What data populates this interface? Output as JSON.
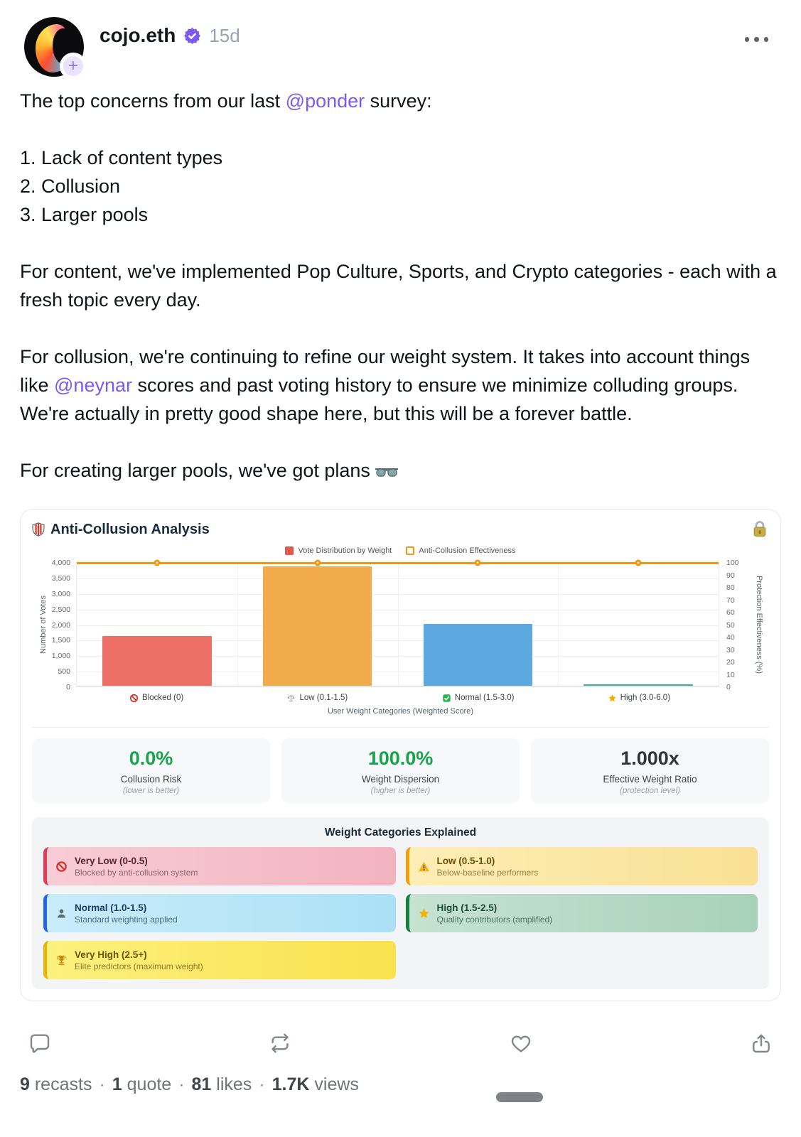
{
  "header": {
    "username": "cojo.eth",
    "timestamp": "15d",
    "verified_color": "#7a5af5",
    "avatar_plus": "+"
  },
  "post": {
    "p1_before": "The top concerns from our last ",
    "p1_link": "@ponder",
    "p1_after": " survey:",
    "list": [
      "1. Lack of content types",
      "2. Collusion",
      "3. Larger pools"
    ],
    "p2": "For content, we've implemented Pop Culture, Sports, and Crypto categories - each with a fresh topic every day.",
    "p3_before": "For collusion, we're continuing to refine our weight system. It takes into account things like ",
    "p3_link": "@neynar",
    "p3_after": " scores and past voting history to ensure we minimize colluding groups. We're actually in pretty good shape here, but this will be a forever battle.",
    "p4_text": "For creating larger pools, we've got plans",
    "p4_emoji": "🕶️",
    "link_color": "#7a5af5"
  },
  "card": {
    "title": "Anti-Collusion Analysis",
    "header_icons": [
      "shield-icon",
      "lock-icon"
    ],
    "chart_data": {
      "type": "bar+line",
      "categories": [
        {
          "icon": "blocked-icon",
          "label": "Blocked (0)"
        },
        {
          "icon": "scale-icon",
          "label": "Low (0.1-1.5)"
        },
        {
          "icon": "check-icon",
          "label": "Normal (1.5-3.0)"
        },
        {
          "icon": "star-icon",
          "label": "High (3.0-6.0)"
        }
      ],
      "series": [
        {
          "name": "Vote Distribution by Weight",
          "type": "bar",
          "values": [
            1600,
            3850,
            2000,
            25
          ],
          "colors": [
            "#ee6f66",
            "#f2ab4a",
            "#5ba9de",
            "#35b79b"
          ],
          "legend": {
            "style": "filled",
            "color": "#e4574d"
          }
        },
        {
          "name": "Anti-Collusion Effectiveness",
          "type": "line",
          "values": [
            100,
            100,
            100,
            100
          ],
          "color": "#f59412",
          "legend": {
            "style": "outline",
            "color": "#f59412"
          }
        }
      ],
      "ylabel_left": "Number of Votes",
      "ylabel_right": "Protection Effectiveness (%)",
      "xlabel": "User Weight Categories (Weighted Score)",
      "left_ticks": [
        "4,000",
        "3,500",
        "3,000",
        "2,500",
        "2,000",
        "1,500",
        "1,000",
        "500",
        "0"
      ],
      "right_ticks": [
        "100",
        "90",
        "80",
        "70",
        "60",
        "50",
        "40",
        "30",
        "20",
        "10",
        "0"
      ],
      "ylim_left": [
        0,
        4000
      ],
      "ylim_right": [
        0,
        100
      ],
      "grid": true,
      "legend_position": "top"
    },
    "stats": [
      {
        "value": "0.0%",
        "label": "Collusion Risk",
        "note": "(lower is better)",
        "color": "#16a34a"
      },
      {
        "value": "100.0%",
        "label": "Weight Dispersion",
        "note": "(higher is better)",
        "color": "#16a34a"
      },
      {
        "value": "1.000x",
        "label": "Effective Weight Ratio",
        "note": "(protection level)",
        "color": "#2f3438"
      }
    ],
    "weight_section": {
      "title": "Weight Categories Explained",
      "items": [
        {
          "icon": "blocked-icon",
          "title": "Very Low (0-0.5)",
          "desc": "Blocked by anti-collusion system",
          "bg": "linear-gradient(90deg,#f8ccd6,#f2b3bf)",
          "border": "#e23b52",
          "titleColor": "#58242e",
          "descColor": "#96606a"
        },
        {
          "icon": "warning-icon",
          "title": "Low (0.5-1.0)",
          "desc": "Below-baseline performers",
          "bg": "linear-gradient(90deg,#fdeeb6,#f9e094)",
          "border": "#f59e0b",
          "titleColor": "#6b4e0a",
          "descColor": "#9a7f42"
        },
        {
          "icon": "person-icon",
          "title": "Normal (1.0-1.5)",
          "desc": "Standard weighting applied",
          "bg": "linear-gradient(90deg,#c9ecfa,#abe0f5)",
          "border": "#2563eb",
          "titleColor": "#1d3f66",
          "descColor": "#4f6d86"
        },
        {
          "icon": "star-icon",
          "title": "High (1.5-2.5)",
          "desc": "Quality contributors (amplified)",
          "bg": "linear-gradient(90deg,#c6e2d1,#a8d1b9)",
          "border": "#15803d",
          "titleColor": "#1c4f32",
          "descColor": "#4e7560"
        },
        {
          "icon": "trophy-icon",
          "title": "Very High (2.5+)",
          "desc": "Elite predictors (maximum weight)",
          "bg": "linear-gradient(90deg,#fdf07e,#f9e24d)",
          "border": "#eab308",
          "titleColor": "#6d5405",
          "descColor": "#8f7a2e"
        }
      ]
    }
  },
  "actions": [
    "comment",
    "recast",
    "like",
    "share"
  ],
  "engagement": {
    "separator": "·",
    "items": [
      {
        "count": "9",
        "label": "recasts"
      },
      {
        "count": "1",
        "label": "quote"
      },
      {
        "count": "81",
        "label": "likes"
      },
      {
        "count": "1.7K",
        "label": "views"
      }
    ]
  }
}
